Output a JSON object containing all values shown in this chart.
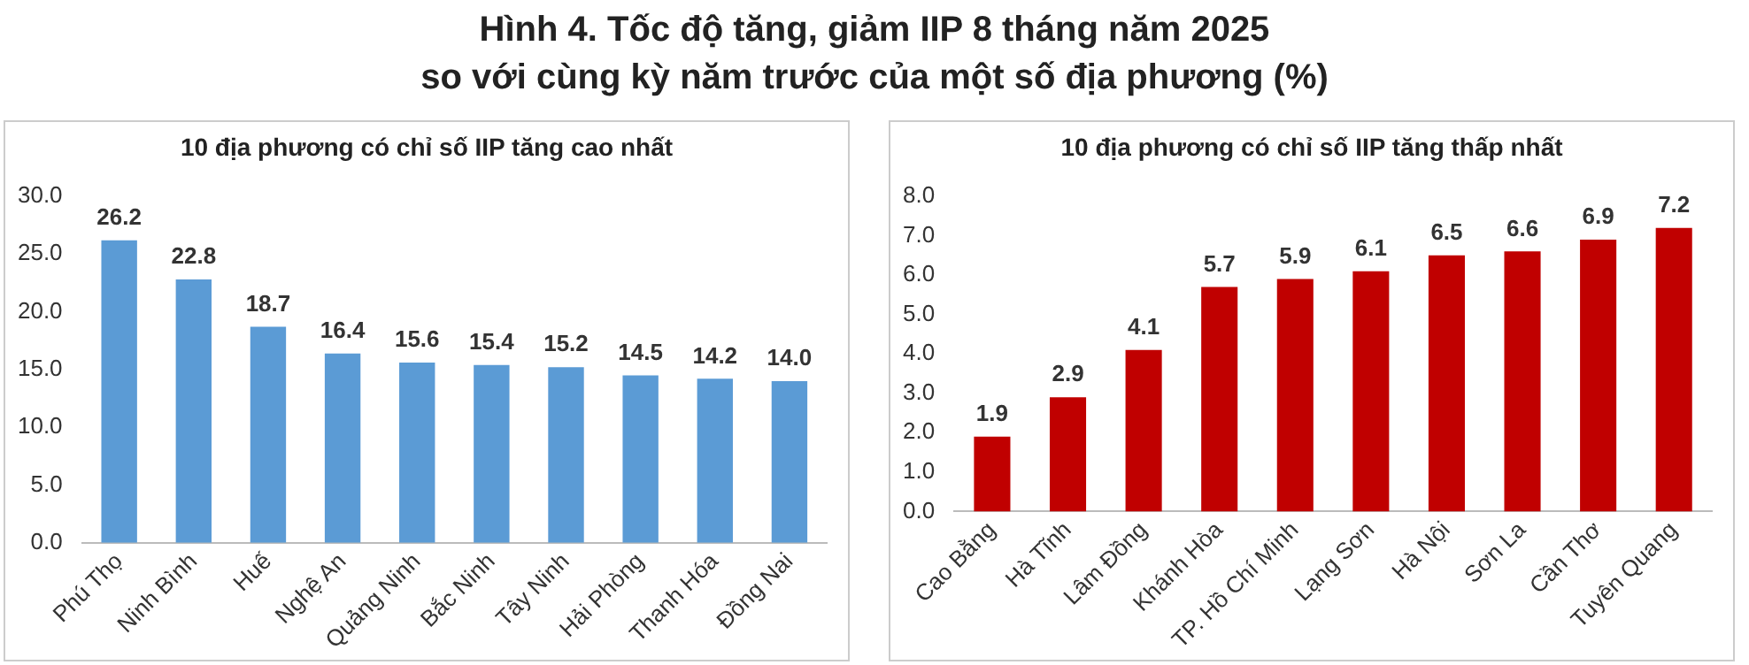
{
  "chart_data": [
    {
      "type": "other",
      "title": "Hình 4. Tốc độ tăng, giảm IIP 8 tháng năm 2025\nso với cùng kỳ năm trước của một số địa phương (%)"
    },
    {
      "type": "bar",
      "title": "10 địa phương có chỉ số IIP tăng cao nhất",
      "categories": [
        "Phú Thọ",
        "Ninh Bình",
        "Huế",
        "Nghệ An",
        "Quảng Ninh",
        "Bắc Ninh",
        "Tây Ninh",
        "Hải Phòng",
        "Thanh Hóa",
        "Đồng Nai"
      ],
      "values": [
        26.2,
        22.8,
        18.7,
        16.4,
        15.6,
        15.4,
        15.2,
        14.5,
        14.2,
        14.0
      ],
      "value_labels": [
        "26.2",
        "22.8",
        "18.7",
        "16.4",
        "15.6",
        "15.4",
        "15.2",
        "14.5",
        "14.2",
        "14.0"
      ],
      "color": "#5b9bd5",
      "ylim": [
        0,
        30
      ],
      "yticks": [
        {
          "value": 0,
          "label": "0.0"
        },
        {
          "value": 5,
          "label": "5.0"
        },
        {
          "value": 10,
          "label": "10.0"
        },
        {
          "value": 15,
          "label": "15.0"
        },
        {
          "value": 20,
          "label": "20.0"
        },
        {
          "value": 25,
          "label": "25.0"
        },
        {
          "value": 30,
          "label": "30.0"
        }
      ],
      "grid": false,
      "legend": false
    },
    {
      "type": "bar",
      "title": "10 địa phương có chỉ số IIP tăng thấp nhất",
      "categories": [
        "Cao Bằng",
        "Hà Tĩnh",
        "Lâm Đồng",
        "Khánh Hòa",
        "TP. Hồ Chí Minh",
        "Lạng Sơn",
        "Hà Nội",
        "Sơn La",
        "Cần Thơ",
        "Tuyên Quang"
      ],
      "values": [
        1.9,
        2.9,
        4.1,
        5.7,
        5.9,
        6.1,
        6.5,
        6.6,
        6.9,
        7.2
      ],
      "value_labels": [
        "1.9",
        "2.9",
        "4.1",
        "5.7",
        "5.9",
        "6.1",
        "6.5",
        "6.6",
        "6.9",
        "7.2"
      ],
      "color": "#c00000",
      "ylim": [
        0,
        8
      ],
      "yticks": [
        {
          "value": 0,
          "label": "0.0"
        },
        {
          "value": 1,
          "label": "1.0"
        },
        {
          "value": 2,
          "label": "2.0"
        },
        {
          "value": 3,
          "label": "3.0"
        },
        {
          "value": 4,
          "label": "4.0"
        },
        {
          "value": 5,
          "label": "5.0"
        },
        {
          "value": 6,
          "label": "6.0"
        },
        {
          "value": 7,
          "label": "7.0"
        },
        {
          "value": 8,
          "label": "8.0"
        }
      ],
      "grid": false,
      "legend": false
    }
  ]
}
